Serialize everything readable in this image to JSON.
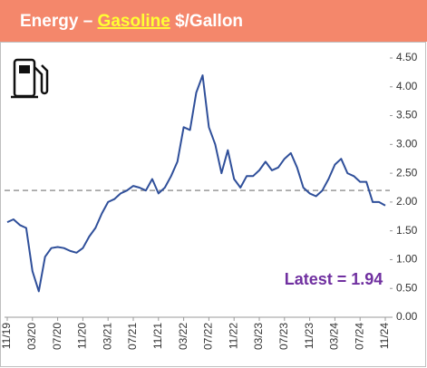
{
  "chart_data": {
    "type": "line",
    "title_parts": [
      "Energy – ",
      "Gasoline",
      " $/Gallon"
    ],
    "annotation": "Latest = 1.94",
    "x": [
      "11/19",
      "12/19",
      "01/20",
      "02/20",
      "03/20",
      "04/20",
      "05/20",
      "06/20",
      "07/20",
      "08/20",
      "09/20",
      "10/20",
      "11/20",
      "12/20",
      "01/21",
      "02/21",
      "03/21",
      "04/21",
      "05/21",
      "06/21",
      "07/21",
      "08/21",
      "09/21",
      "10/21",
      "11/21",
      "12/21",
      "01/22",
      "02/22",
      "03/22",
      "04/22",
      "05/22",
      "06/22",
      "07/22",
      "08/22",
      "09/22",
      "10/22",
      "11/22",
      "12/22",
      "01/23",
      "02/23",
      "03/23",
      "04/23",
      "05/23",
      "06/23",
      "07/23",
      "08/23",
      "09/23",
      "10/23",
      "11/23",
      "12/23",
      "01/24",
      "02/24",
      "03/24",
      "04/24",
      "05/24",
      "06/24",
      "07/24",
      "08/24",
      "09/24",
      "10/24",
      "11/24"
    ],
    "series": [
      {
        "name": "Gasoline",
        "color": "#2f4f9a",
        "values": [
          1.65,
          1.7,
          1.6,
          1.55,
          0.8,
          0.45,
          1.05,
          1.2,
          1.22,
          1.2,
          1.15,
          1.12,
          1.2,
          1.4,
          1.55,
          1.8,
          2.0,
          2.05,
          2.15,
          2.2,
          2.28,
          2.25,
          2.2,
          2.4,
          2.15,
          2.25,
          2.45,
          2.7,
          3.3,
          3.25,
          3.9,
          4.2,
          3.3,
          3.0,
          2.5,
          2.9,
          2.4,
          2.25,
          2.45,
          2.45,
          2.55,
          2.7,
          2.55,
          2.6,
          2.75,
          2.85,
          2.6,
          2.25,
          2.15,
          2.1,
          2.2,
          2.4,
          2.65,
          2.75,
          2.5,
          2.45,
          2.35,
          2.35,
          2.0,
          2.0,
          1.94
        ]
      }
    ],
    "reference_line": 2.2,
    "xticks": [
      "11/19",
      "03/20",
      "07/20",
      "11/20",
      "03/21",
      "07/21",
      "11/21",
      "03/22",
      "07/22",
      "11/22",
      "03/23",
      "07/23",
      "11/23",
      "03/24",
      "07/24",
      "11/24"
    ],
    "ylim": [
      0,
      4.5
    ],
    "yticks": [
      {
        "value": 0,
        "label": "0.00"
      },
      {
        "value": 0.5,
        "label": "0.50"
      },
      {
        "value": 1,
        "label": "1.00"
      },
      {
        "value": 1.5,
        "label": "1.50"
      },
      {
        "value": 2,
        "label": "2.00"
      },
      {
        "value": 2.5,
        "label": "2.50"
      },
      {
        "value": 3,
        "label": "3.00"
      },
      {
        "value": 3.5,
        "label": "3.50"
      },
      {
        "value": 4,
        "label": "4.00"
      },
      {
        "value": 4.5,
        "label": "4.50"
      }
    ]
  }
}
